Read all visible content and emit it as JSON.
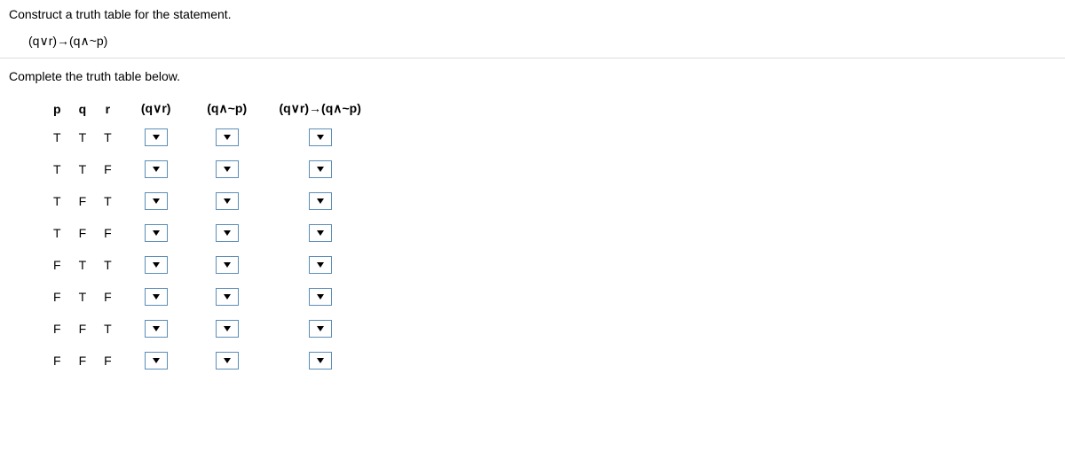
{
  "instruction_text": "Construct a truth table for the statement.",
  "formula_text": "(q∨r)→(q∧~p)",
  "sub_instruction_text": "Complete the truth table below.",
  "headers": {
    "p": "p",
    "q": "q",
    "r": "r",
    "qvr": "(q∨r)",
    "qnp": "(q∧~p)",
    "impl": "(q∨r)→(q∧~p)"
  },
  "rows": [
    {
      "p": "T",
      "q": "T",
      "r": "T"
    },
    {
      "p": "T",
      "q": "T",
      "r": "F"
    },
    {
      "p": "T",
      "q": "F",
      "r": "T"
    },
    {
      "p": "T",
      "q": "F",
      "r": "F"
    },
    {
      "p": "F",
      "q": "T",
      "r": "T"
    },
    {
      "p": "F",
      "q": "T",
      "r": "F"
    },
    {
      "p": "F",
      "q": "F",
      "r": "T"
    },
    {
      "p": "F",
      "q": "F",
      "r": "F"
    }
  ],
  "dropdown_cols": [
    "qvr",
    "qnp",
    "impl"
  ]
}
